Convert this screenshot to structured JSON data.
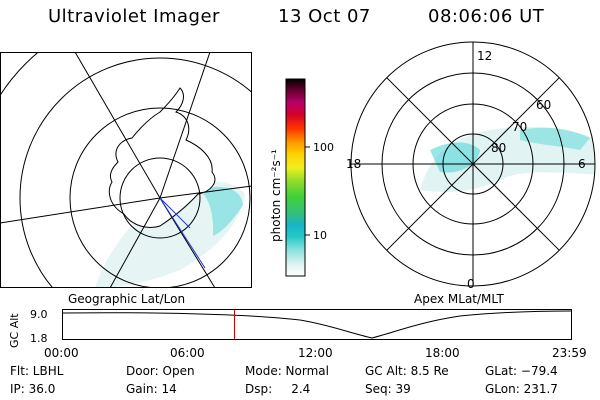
{
  "header": {
    "title": "Ultraviolet Imager",
    "date": "13 Oct 07",
    "time": "08:06:06 UT"
  },
  "colorbar": {
    "unit_label": "photon cm⁻²s⁻¹",
    "ticks": [
      "100",
      "10"
    ]
  },
  "left_map": {
    "label": "Geographic Lat/Lon"
  },
  "right_map": {
    "label": "Apex MLat/MLT",
    "mlt_labels": {
      "top": "12",
      "left": "18",
      "right": "6",
      "bottom": "0"
    },
    "lat_labels": [
      "60",
      "70",
      "80"
    ]
  },
  "altitude_plot": {
    "ylabel": "GC Alt",
    "ytick_top": "9.0",
    "ytick_bottom": "1.8",
    "time_ticks": [
      "00:00",
      "06:00",
      "12:00",
      "18:00",
      "23:59"
    ],
    "marker_fraction": 0.3376
  },
  "info": {
    "row1": [
      {
        "label": "Flt: LBHL"
      },
      {
        "label": "Door: Open"
      },
      {
        "label": "Mode: Normal"
      },
      {
        "label": "GC Alt: 8.5 Re"
      },
      {
        "label": "GLat: −79.4"
      }
    ],
    "row2": [
      {
        "label": "IP: 36.0"
      },
      {
        "label": "Gain: 14"
      },
      {
        "label": "Dsp:     2.4"
      },
      {
        "label": "Seq: 39"
      },
      {
        "label": "GLon: 231.7"
      }
    ]
  },
  "colors": {
    "marker": "#cc0000",
    "swath_light": "#e2f3f3",
    "swath_cyan": "#46d4d4"
  }
}
